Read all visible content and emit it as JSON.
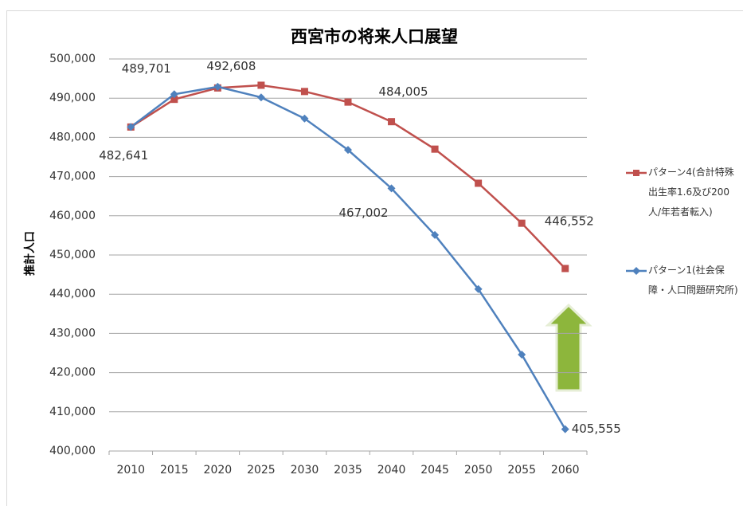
{
  "chart_data": {
    "type": "line",
    "title": "西宮市の将来人口展望",
    "y_label": "推計人口",
    "categories": [
      "2010",
      "2015",
      "2020",
      "2025",
      "2030",
      "2035",
      "2040",
      "2045",
      "2050",
      "2055",
      "2060"
    ],
    "series": [
      {
        "name": "パターン4(合計特殊出生率1.6及び200人/年若者転入)",
        "color": "#c0504d",
        "marker": "square",
        "values": [
          482641,
          489701,
          492608,
          493300,
          491700,
          489000,
          484005,
          477000,
          468300,
          458100,
          446552
        ],
        "value_labels": [
          "482,641",
          "489,701",
          "492,608",
          null,
          null,
          null,
          "484,005",
          null,
          null,
          null,
          "446,552"
        ]
      },
      {
        "name": "パターン1(社会保障・人口問題研究所)",
        "color": "#4f81bd",
        "marker": "diamond",
        "values": [
          482641,
          491000,
          492900,
          490200,
          484800,
          476800,
          467002,
          455100,
          441300,
          424600,
          405555
        ],
        "value_labels": [
          null,
          null,
          null,
          null,
          null,
          null,
          "467,002",
          null,
          null,
          null,
          "405,555"
        ]
      }
    ],
    "ylim": [
      400000,
      500000
    ],
    "yticks": [
      {
        "value": 400000,
        "label": "400,000"
      },
      {
        "value": 410000,
        "label": "410,000"
      },
      {
        "value": 420000,
        "label": "420,000"
      },
      {
        "value": 430000,
        "label": "430,000"
      },
      {
        "value": 440000,
        "label": "440,000"
      },
      {
        "value": 450000,
        "label": "450,000"
      },
      {
        "value": 460000,
        "label": "460,000"
      },
      {
        "value": 470000,
        "label": "470,000"
      },
      {
        "value": 480000,
        "label": "480,000"
      },
      {
        "value": 490000,
        "label": "490,000"
      },
      {
        "value": 500000,
        "label": "500,000"
      }
    ],
    "grid": true,
    "legend": "right"
  }
}
